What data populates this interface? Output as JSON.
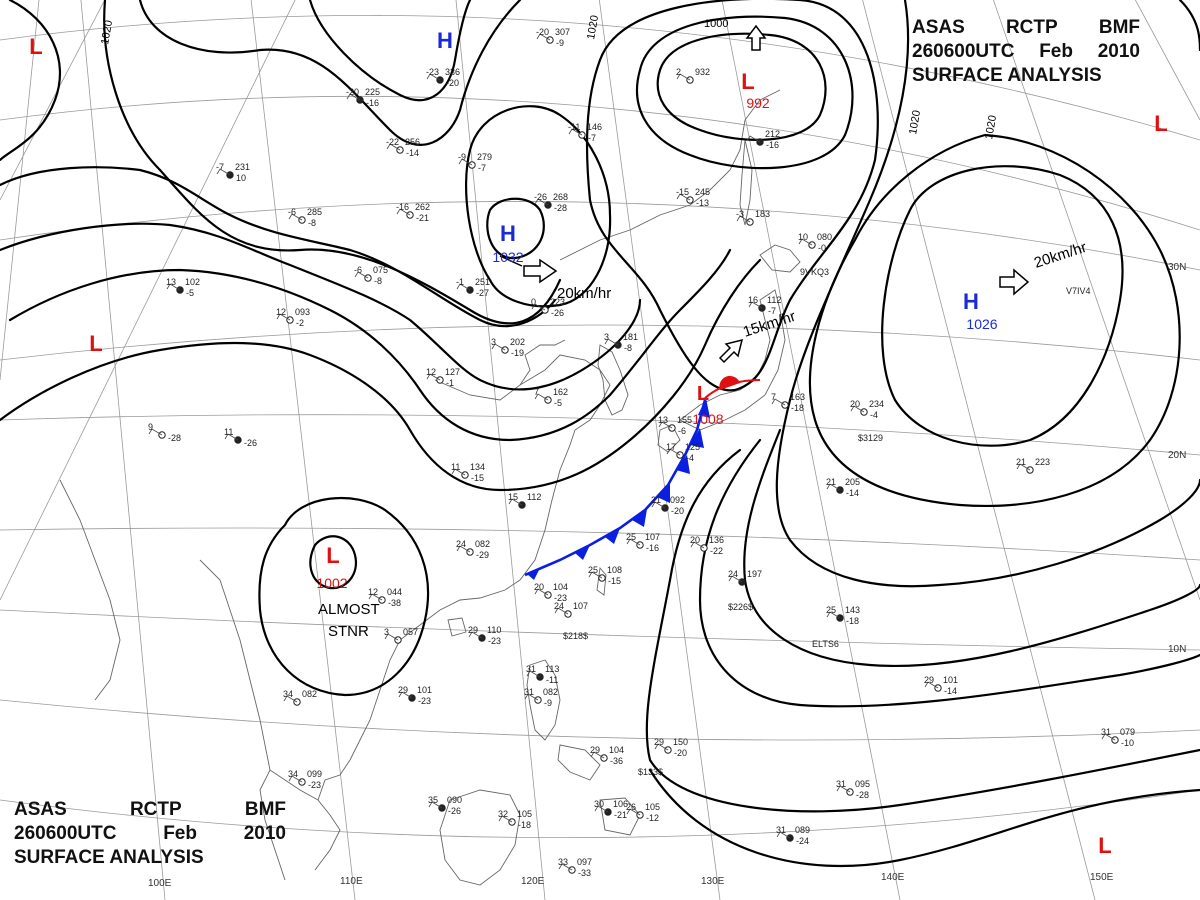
{
  "header": {
    "line1": [
      "ASAS",
      "RCTP",
      "BMF"
    ],
    "line2": [
      "260600UTC",
      "Feb",
      "2010"
    ],
    "line3": "SURFACE ANALYSIS"
  },
  "centers": [
    {
      "type": "H",
      "pressure": ""
    },
    {
      "type": "H",
      "pressure": "1032"
    },
    {
      "type": "H",
      "pressure": "1026"
    },
    {
      "type": "L",
      "pressure": "992"
    },
    {
      "type": "L",
      "pressure": "1002"
    },
    {
      "type": "L",
      "pressure": "1008"
    },
    {
      "type": "L",
      "pressure": ""
    },
    {
      "type": "L",
      "pressure": ""
    },
    {
      "type": "L",
      "pressure": ""
    },
    {
      "type": "L",
      "pressure": ""
    }
  ],
  "motions": [
    "20km/hr",
    "15km/hr",
    "20km/hr"
  ],
  "notes": [
    "ALMOST",
    "STNR"
  ],
  "isobar_labels": [
    "1020",
    "1020",
    "1000",
    "1020",
    "1020"
  ],
  "lon_labels": [
    "100E",
    "110E",
    "120E",
    "130E",
    "140E",
    "150E"
  ],
  "lat_labels": [
    "30N",
    "20N",
    "10N"
  ],
  "stations": [
    {
      "t": "-23",
      "p": "336",
      "d": "-20"
    },
    {
      "t": "-20",
      "p": "307",
      "d": "-9"
    },
    {
      "t": "2",
      "p": "932",
      "d": ""
    },
    {
      "t": "-20",
      "p": "225",
      "d": "-16"
    },
    {
      "t": "-22",
      "p": "256",
      "d": "-14"
    },
    {
      "t": "-9",
      "p": "279",
      "d": "-7"
    },
    {
      "t": "-7",
      "p": "231",
      "d": "10"
    },
    {
      "t": "-6",
      "p": "285",
      "d": "-8"
    },
    {
      "t": "-16",
      "p": "262",
      "d": "-21"
    },
    {
      "t": "-26",
      "p": "268",
      "d": "-28"
    },
    {
      "t": "-15",
      "p": "245",
      "d": "-13"
    },
    {
      "t": "-11",
      "p": "146",
      "d": "-7"
    },
    {
      "t": "13",
      "p": "102",
      "d": "-5"
    },
    {
      "t": "12",
      "p": "093",
      "d": "-2"
    },
    {
      "t": "-6",
      "p": "075",
      "d": "-8"
    },
    {
      "t": "-1",
      "p": "251",
      "d": "-27"
    },
    {
      "t": "0",
      "p": "223",
      "d": "-26"
    },
    {
      "t": "3",
      "p": "202",
      "d": "-19"
    },
    {
      "t": "3",
      "p": "181",
      "d": "-8"
    },
    {
      "t": "7",
      "p": "162",
      "d": "-5"
    },
    {
      "t": "12",
      "p": "127",
      "d": "-1"
    },
    {
      "t": "11",
      "p": "",
      "d": "-26"
    },
    {
      "t": "9",
      "p": "",
      "d": "-28"
    },
    {
      "t": "11",
      "p": "134",
      "d": "-15"
    },
    {
      "t": "15",
      "p": "112",
      "d": ""
    },
    {
      "t": "24",
      "p": "082",
      "d": "-29"
    },
    {
      "t": "20",
      "p": "104",
      "d": "-23"
    },
    {
      "t": "21",
      "p": "092",
      "d": "-20"
    },
    {
      "t": "25",
      "p": "107",
      "d": "-16"
    },
    {
      "t": "20",
      "p": "136",
      "d": "-22"
    },
    {
      "t": "24",
      "p": "197",
      "d": ""
    },
    {
      "t": "12",
      "p": "044",
      "d": "-38"
    },
    {
      "t": "3",
      "p": "057",
      "d": ""
    },
    {
      "t": "29",
      "p": "110",
      "d": "-23"
    },
    {
      "t": "24",
      "p": "107",
      "d": ""
    },
    {
      "t": "25",
      "p": "108",
      "d": "-15"
    },
    {
      "t": "29",
      "p": "101",
      "d": "-23"
    },
    {
      "t": "34",
      "p": "082",
      "d": ""
    },
    {
      "t": "34",
      "p": "099",
      "d": "-23"
    },
    {
      "t": "35",
      "p": "090",
      "d": "-26"
    },
    {
      "t": "32",
      "p": "105",
      "d": "-18"
    },
    {
      "t": "31",
      "p": "082",
      "d": "-9"
    },
    {
      "t": "31",
      "p": "113",
      "d": "-11"
    },
    {
      "t": "29",
      "p": "104",
      "d": "-36"
    },
    {
      "t": "29",
      "p": "150",
      "d": "-20"
    },
    {
      "t": "30",
      "p": "106",
      "d": "-21"
    },
    {
      "t": "33",
      "p": "097",
      "d": "-33"
    },
    {
      "t": "26",
      "p": "105",
      "d": "-12"
    },
    {
      "t": "25",
      "p": "143",
      "d": "-18"
    },
    {
      "t": "29",
      "p": "101",
      "d": "-14"
    },
    {
      "t": "31",
      "p": "095",
      "d": "-28"
    },
    {
      "t": "31",
      "p": "089",
      "d": "-24"
    },
    {
      "t": "31",
      "p": "079",
      "d": "-10"
    },
    {
      "t": "20",
      "p": "234",
      "d": "-4"
    },
    {
      "t": "21",
      "p": "205",
      "d": "-14"
    },
    {
      "t": "21",
      "p": "223",
      "d": ""
    },
    {
      "t": "7",
      "p": "163",
      "d": "-18"
    },
    {
      "t": "16",
      "p": "112",
      "d": "-7"
    },
    {
      "t": "10",
      "p": "080",
      "d": "-0"
    },
    {
      "t": "-3",
      "p": "183",
      "d": ""
    },
    {
      "t": "",
      "p": "212",
      "d": "-16"
    },
    {
      "t": "13",
      "p": "155",
      "d": "-6"
    },
    {
      "t": "17",
      "p": "125",
      "d": "-4"
    }
  ],
  "ship_ids": [
    "$3129",
    "$226$",
    "$218$",
    "ELTS6",
    "$133$",
    "9VKQ3",
    "V7IV4"
  ],
  "colors": {
    "high": "#1a2bd6",
    "low": "#e01010",
    "front": "#0a1fe0",
    "warm": "#e01010",
    "isobar": "#000000",
    "grid": "#9a9a9a",
    "coast": "#666666"
  }
}
